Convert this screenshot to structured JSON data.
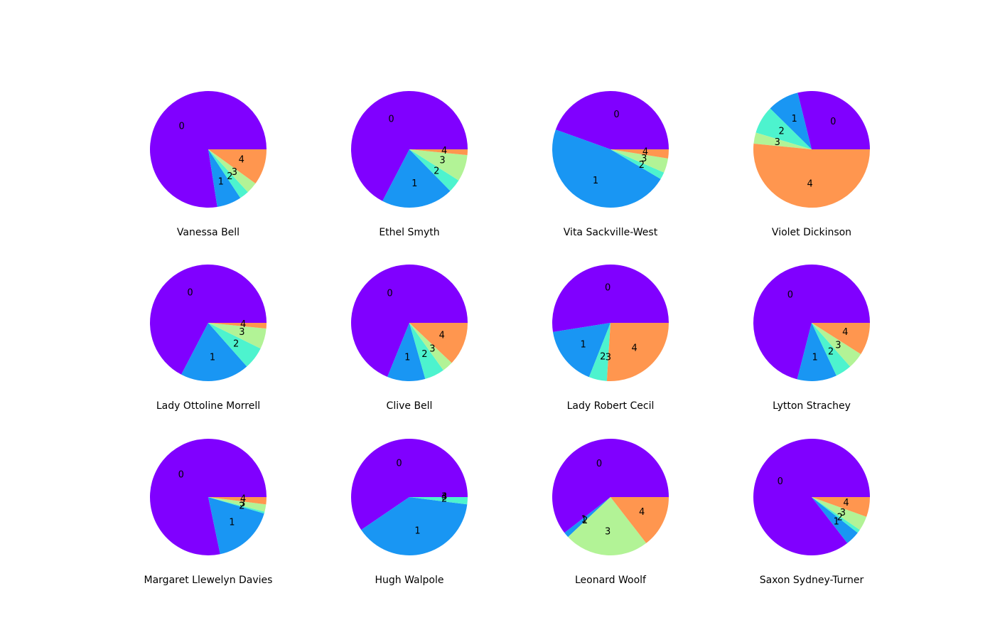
{
  "colors": [
    "#8000ff",
    "#1996f3",
    "#4df3ce",
    "#b2f396",
    "#ff964f"
  ],
  "chart_data": [
    {
      "type": "pie",
      "title": "Vanessa Bell",
      "labels": [
        "0",
        "1",
        "2",
        "3",
        "4"
      ],
      "values": [
        74.0,
        6.5,
        2.5,
        3.0,
        9.5
      ]
    },
    {
      "type": "pie",
      "title": "Ethel Smyth",
      "labels": [
        "0",
        "1",
        "2",
        "3",
        "4"
      ],
      "values": [
        64.0,
        19.0,
        3.5,
        7.0,
        1.5
      ]
    },
    {
      "type": "pie",
      "title": "Vita Sackville-West",
      "labels": [
        "0",
        "1",
        "2",
        "3",
        "4"
      ],
      "values": [
        44.5,
        47.0,
        2.0,
        4.0,
        2.5
      ]
    },
    {
      "type": "pie",
      "title": "Violet Dickinson",
      "labels": [
        "0",
        "1",
        "2",
        "3",
        "4"
      ],
      "values": [
        28.0,
        8.5,
        7.5,
        3.0,
        50.0
      ]
    },
    {
      "type": "pie",
      "title": "Lady Ottoline Morrell",
      "labels": [
        "0",
        "1",
        "2",
        "3",
        "4"
      ],
      "values": [
        65.0,
        18.5,
        6.0,
        5.5,
        1.5
      ]
    },
    {
      "type": "pie",
      "title": "Clive Bell",
      "labels": [
        "0",
        "1",
        "2",
        "3",
        "4"
      ],
      "values": [
        68.5,
        10.5,
        5.5,
        3.0,
        12.0
      ]
    },
    {
      "type": "pie",
      "title": "Lady Robert Cecil",
      "labels": [
        "0",
        "1",
        "2",
        "3",
        "4"
      ],
      "values": [
        52.5,
        16.5,
        5.0,
        0.0,
        26.0
      ]
    },
    {
      "type": "pie",
      "title": "Lytton Strachey",
      "labels": [
        "0",
        "1",
        "2",
        "3",
        "4"
      ],
      "values": [
        71.0,
        11.0,
        4.5,
        4.5,
        9.0
      ]
    },
    {
      "type": "pie",
      "title": "Margaret Llewelyn Davies",
      "labels": [
        "0",
        "1",
        "2",
        "3",
        "4"
      ],
      "values": [
        77.5,
        17.0,
        0.5,
        2.0,
        2.0
      ]
    },
    {
      "type": "pie",
      "title": "Hugh Walpole",
      "labels": [
        "0",
        "1",
        "2",
        "3",
        "4"
      ],
      "values": [
        59.5,
        38.5,
        2.0,
        0.0,
        0.0
      ]
    },
    {
      "type": "pie",
      "title": "Leonard Woolf",
      "labels": [
        "0",
        "1",
        "2",
        "3",
        "4"
      ],
      "values": [
        60.5,
        1.5,
        0.0,
        23.5,
        14.5
      ]
    },
    {
      "type": "pie",
      "title": "Saxon Sydney-Turner",
      "labels": [
        "0",
        "1",
        "2",
        "3",
        "4"
      ],
      "values": [
        85.5,
        4.0,
        1.0,
        4.0,
        5.5
      ]
    }
  ]
}
